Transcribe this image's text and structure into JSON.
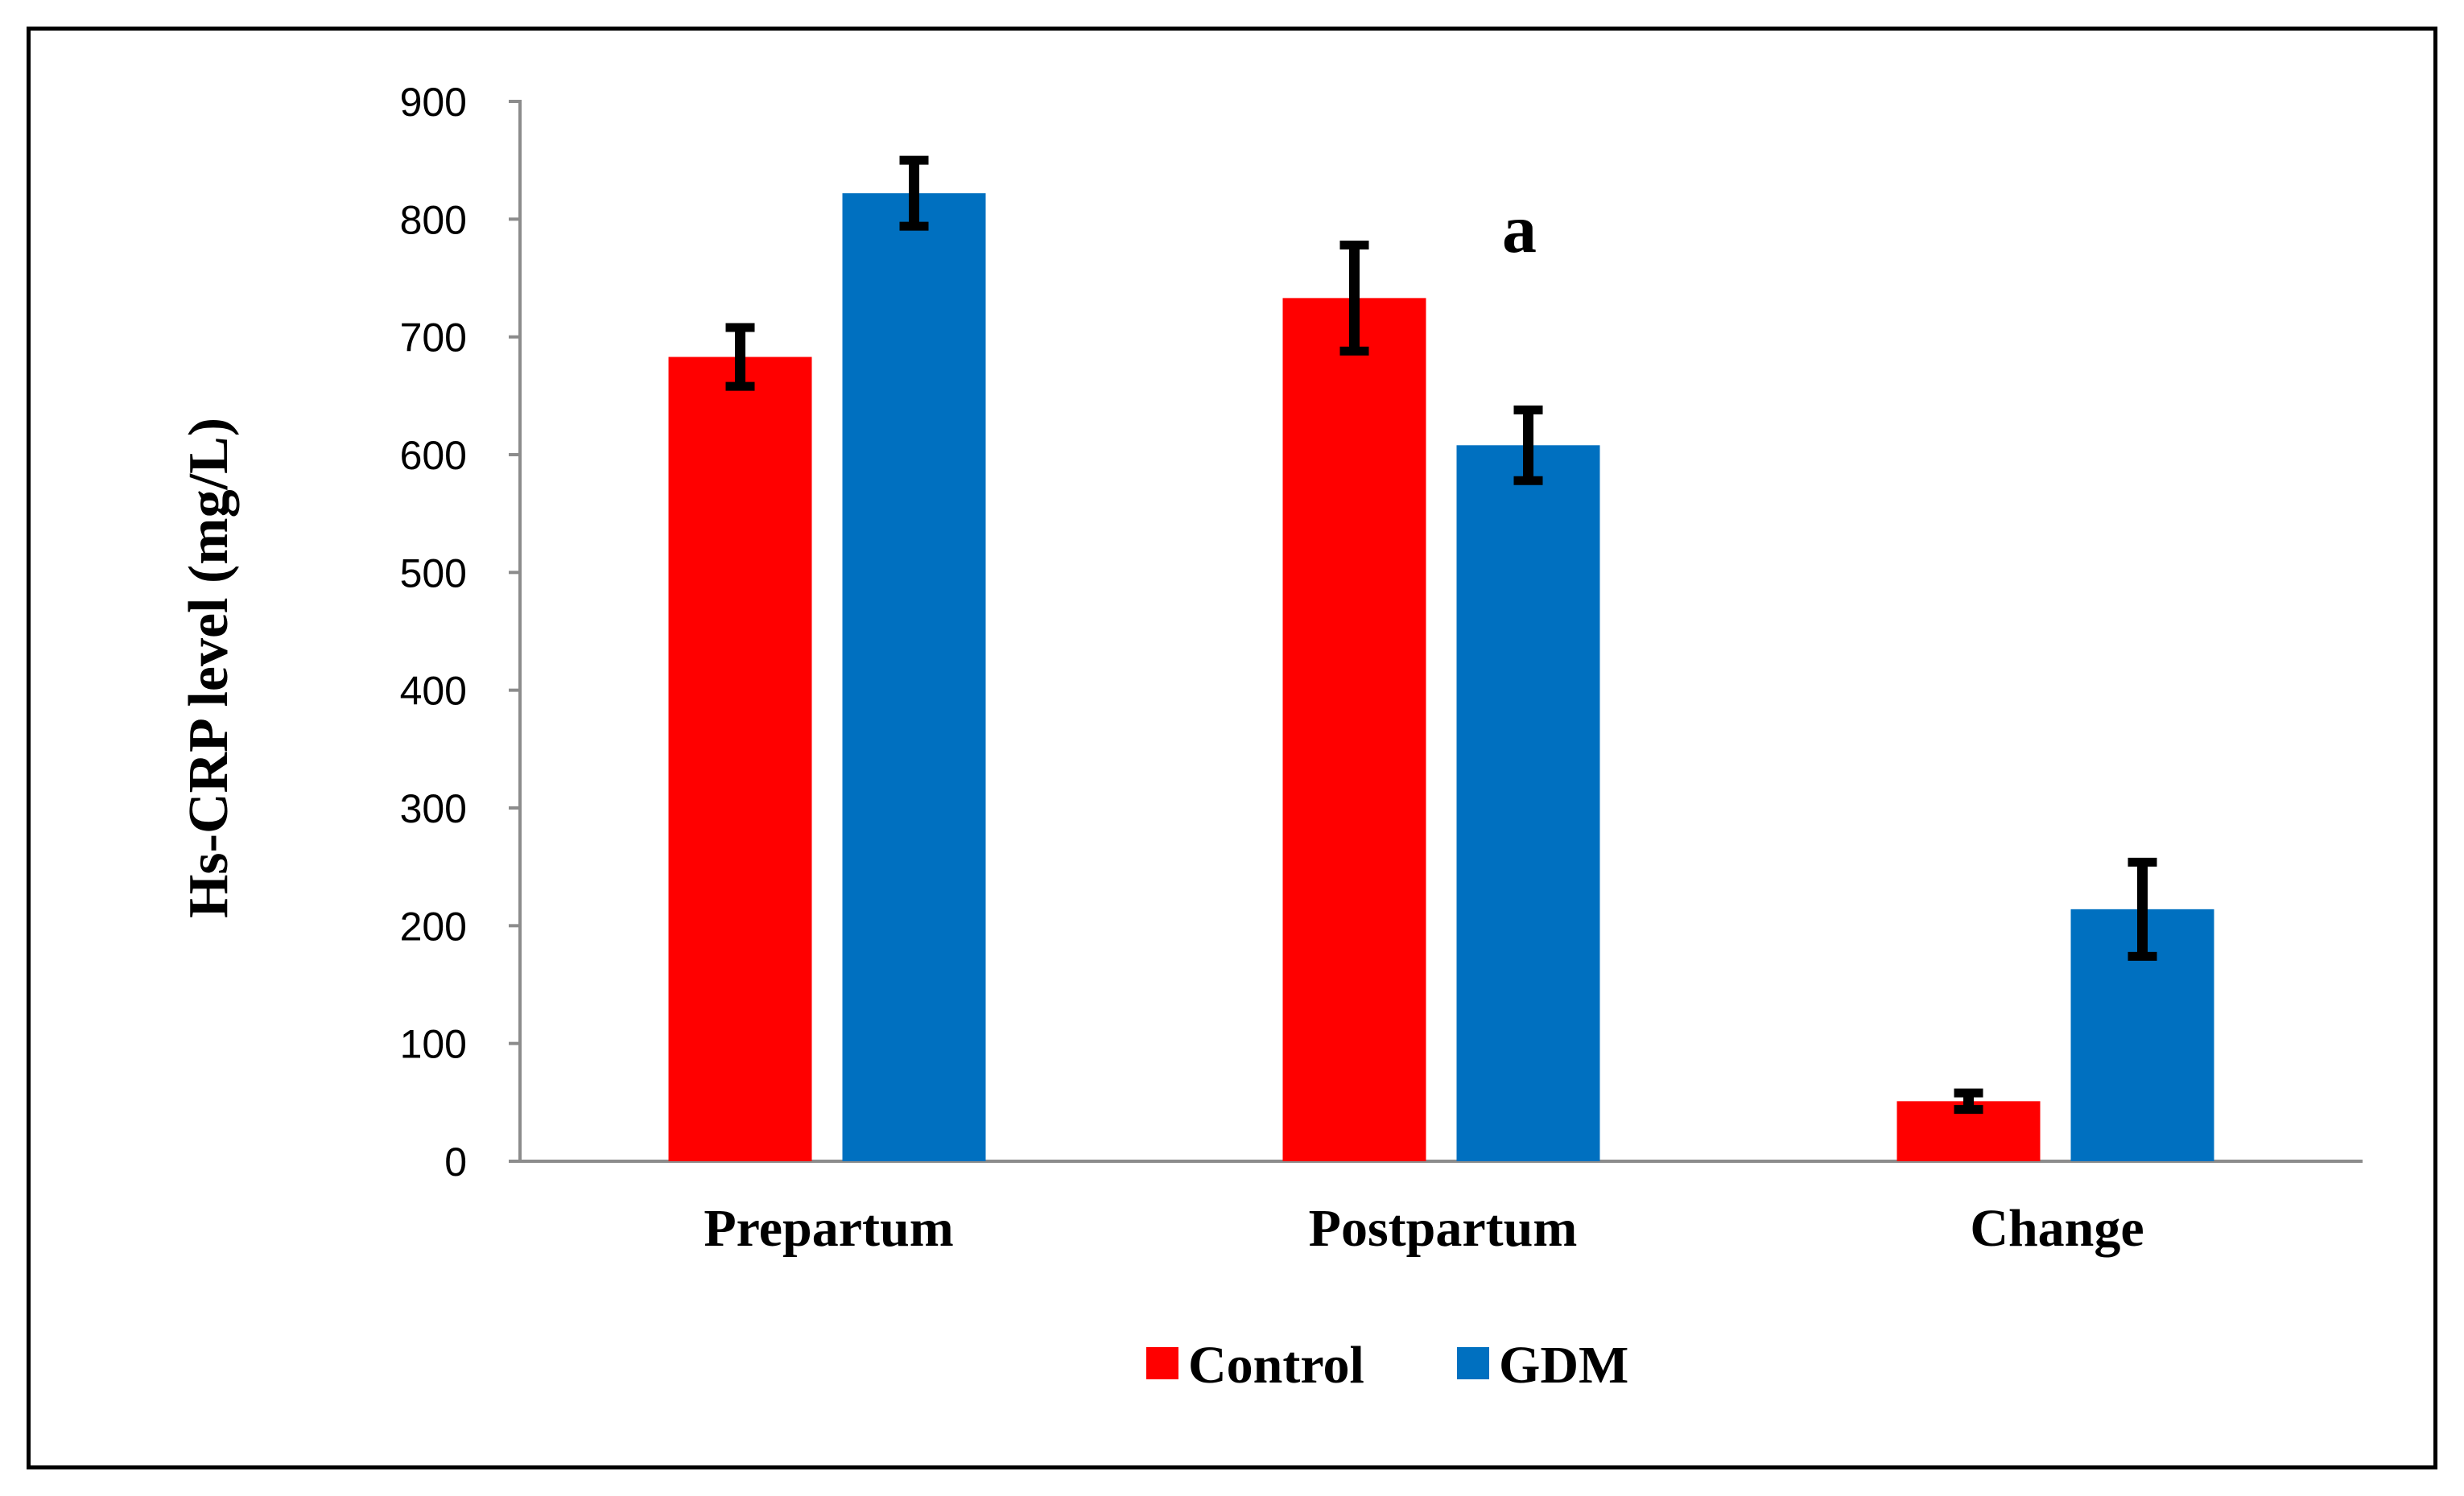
{
  "chart_data": {
    "type": "bar",
    "title": "",
    "xlabel": "",
    "ylabel": "Hs-CRP level (mg/L)",
    "ylim": [
      0,
      900
    ],
    "yticks": [
      0,
      100,
      200,
      300,
      400,
      500,
      600,
      700,
      800,
      900
    ],
    "grid": false,
    "categories": [
      "Prepartum",
      "Postpartum",
      "Change"
    ],
    "series": [
      {
        "name": "Control",
        "color": "#ff0000",
        "values": [
          683,
          733,
          51
        ],
        "errors": [
          25,
          45,
          7
        ]
      },
      {
        "name": "GDM",
        "color": "#0070c0",
        "values": [
          822,
          608,
          214
        ],
        "errors": [
          28,
          30,
          40
        ]
      }
    ],
    "annotations": [
      {
        "text": "a",
        "category": "Postpartum",
        "y": 790
      }
    ],
    "legend": {
      "position": "bottom-center"
    }
  }
}
